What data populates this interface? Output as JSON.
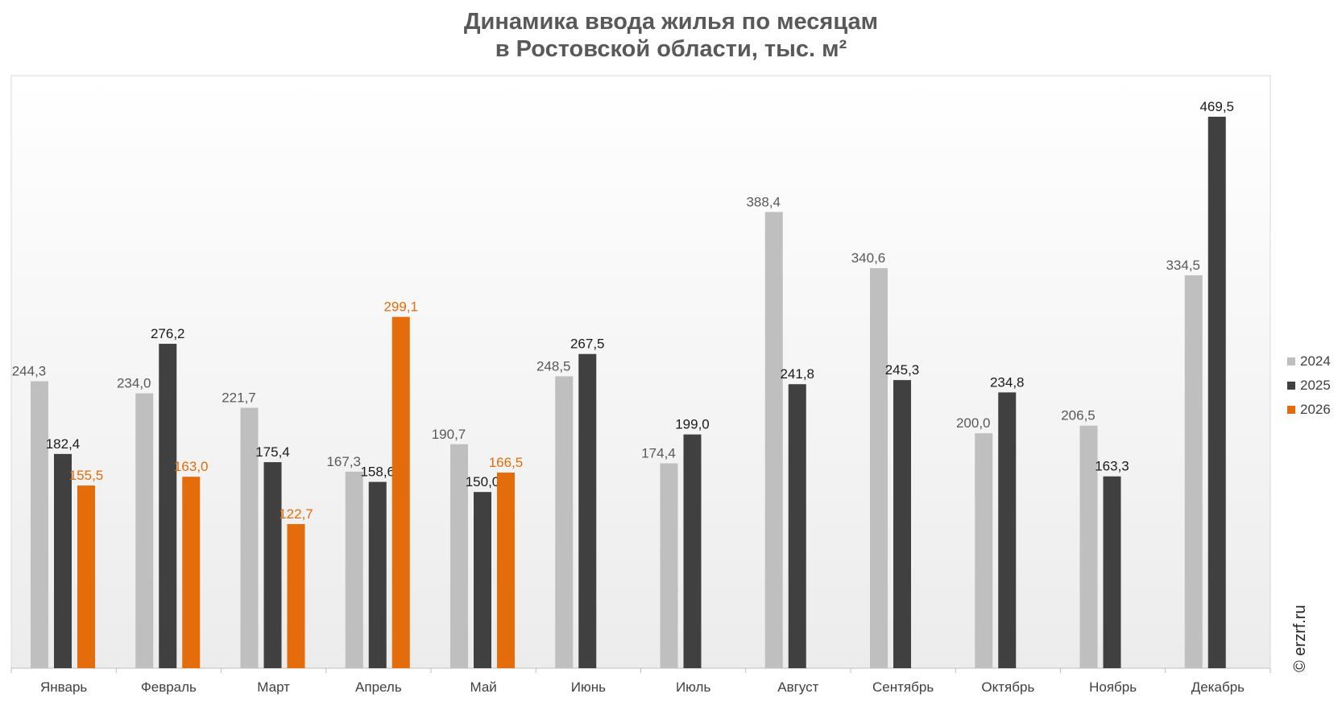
{
  "chart_data": {
    "type": "bar",
    "title_line1": "Динамика ввода жилья по месяцам",
    "title_line2": "в Ростовской области, тыс. м²",
    "xlabel": "",
    "ylabel": "",
    "ylim": [
      0,
      500
    ],
    "grid": false,
    "legend_position": "right",
    "categories": [
      "Январь",
      "Февраль",
      "Март",
      "Апрель",
      "Май",
      "Июнь",
      "Июль",
      "Август",
      "Сентябрь",
      "Октябрь",
      "Ноябрь",
      "Декабрь"
    ],
    "series": [
      {
        "name": "2024",
        "color": "#bfbfbf",
        "label_color": "#595959",
        "values": [
          244.3,
          234.0,
          221.7,
          167.3,
          190.7,
          248.5,
          174.4,
          388.4,
          340.6,
          200.0,
          206.5,
          334.5
        ],
        "labels": [
          "244,3",
          "234,0",
          "221,7",
          "167,3",
          "190,7",
          "248,5",
          "174,4",
          "388,4",
          "340,6",
          "200,0",
          "206,5",
          "334,5"
        ]
      },
      {
        "name": "2025",
        "color": "#404040",
        "label_color": "#1a1a1a",
        "values": [
          182.4,
          276.2,
          175.4,
          158.6,
          150.0,
          267.5,
          199.0,
          241.8,
          245.3,
          234.8,
          163.3,
          469.5
        ],
        "labels": [
          "182,4",
          "276,2",
          "175,4",
          "158,6",
          "150,0",
          "267,5",
          "199,0",
          "241,8",
          "245,3",
          "234,8",
          "163,3",
          "469,5"
        ]
      },
      {
        "name": "2026",
        "color": "#e46c0a",
        "label_color": "#e46c0a",
        "values": [
          155.5,
          163.0,
          122.7,
          299.1,
          166.5,
          null,
          null,
          null,
          null,
          null,
          null,
          null
        ],
        "labels": [
          "155,5",
          "163,0",
          "122,7",
          "299,1",
          "166,5",
          null,
          null,
          null,
          null,
          null,
          null,
          null
        ]
      }
    ],
    "watermark": "© erzrf.ru"
  }
}
